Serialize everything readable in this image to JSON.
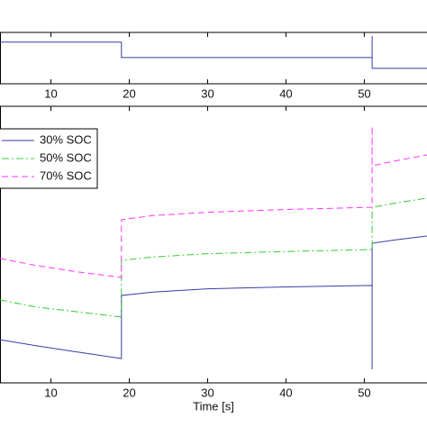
{
  "chart_data": [
    {
      "type": "line",
      "xlim": [
        3.5,
        58
      ],
      "ylim": [
        0,
        1
      ],
      "xticks": [
        10,
        20,
        30,
        40,
        50
      ],
      "series": [
        {
          "color": "#3a3aa8",
          "style": "solid",
          "x": [
            3.5,
            19,
            19,
            51,
            51,
            51,
            58
          ],
          "values": [
            0.81,
            0.81,
            0.51,
            0.51,
            0.93,
            0.3,
            0.3
          ]
        }
      ]
    },
    {
      "type": "line",
      "xlabel": "Time [s]",
      "xlim": [
        3.5,
        58
      ],
      "ylim": [
        0,
        1
      ],
      "xticks": [
        10,
        20,
        30,
        40,
        50
      ],
      "legend": "upper left",
      "series": [
        {
          "name": "30% SOC",
          "color": "#3a3aa8",
          "style": "solid",
          "x": [
            3.5,
            8,
            13,
            19,
            19,
            23,
            30,
            40,
            51,
            51,
            51,
            54,
            58
          ],
          "values": [
            0.156,
            0.135,
            0.113,
            0.088,
            0.316,
            0.328,
            0.34,
            0.347,
            0.352,
            0.049,
            0.505,
            0.517,
            0.531
          ]
        },
        {
          "name": "50% SOC",
          "color": "#33cc33",
          "style": "dashdot",
          "x": [
            3.5,
            8,
            13,
            19,
            19,
            23,
            30,
            40,
            51,
            51,
            54,
            58
          ],
          "values": [
            0.3,
            0.275,
            0.258,
            0.238,
            0.443,
            0.455,
            0.467,
            0.475,
            0.482,
            0.635,
            0.65,
            0.668
          ]
        },
        {
          "name": "70% SOC",
          "color": "#ff33ff",
          "style": "dashed",
          "x": [
            3.5,
            8,
            13,
            19,
            19,
            23,
            30,
            40,
            51,
            51,
            51,
            54,
            58
          ],
          "values": [
            0.45,
            0.425,
            0.403,
            0.381,
            0.59,
            0.605,
            0.617,
            0.627,
            0.635,
            0.928,
            0.785,
            0.803,
            0.824
          ]
        }
      ]
    }
  ]
}
